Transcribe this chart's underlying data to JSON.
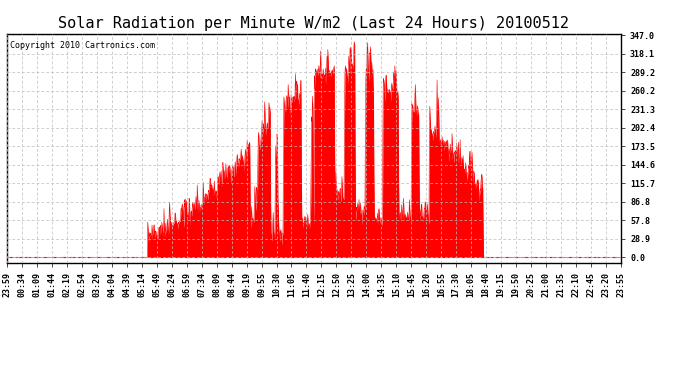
{
  "title": "Solar Radiation per Minute W/m2 (Last 24 Hours) 20100512",
  "copyright": "Copyright 2010 Cartronics.com",
  "fill_color": "#ff0000",
  "line_color": "#ff0000",
  "dashed_line_color": "#ff0000",
  "background_color": "#ffffff",
  "grid_color": "#aaaaaa",
  "y_ticks": [
    0.0,
    28.9,
    57.8,
    86.8,
    115.7,
    144.6,
    173.5,
    202.4,
    231.3,
    260.2,
    289.2,
    318.1,
    347.0
  ],
  "x_labels": [
    "23:59",
    "00:34",
    "01:09",
    "01:44",
    "02:19",
    "02:54",
    "03:29",
    "04:04",
    "04:39",
    "05:14",
    "05:49",
    "06:24",
    "06:59",
    "07:34",
    "08:09",
    "08:44",
    "09:19",
    "09:55",
    "10:30",
    "11:05",
    "11:40",
    "12:15",
    "12:50",
    "13:25",
    "14:00",
    "14:35",
    "15:10",
    "15:45",
    "16:20",
    "16:55",
    "17:30",
    "18:05",
    "18:40",
    "19:15",
    "19:50",
    "20:25",
    "21:00",
    "21:35",
    "22:10",
    "22:45",
    "23:20",
    "23:55"
  ],
  "ylim": [
    0.0,
    347.0
  ],
  "title_fontsize": 11,
  "copyright_fontsize": 6,
  "tick_fontsize": 6
}
